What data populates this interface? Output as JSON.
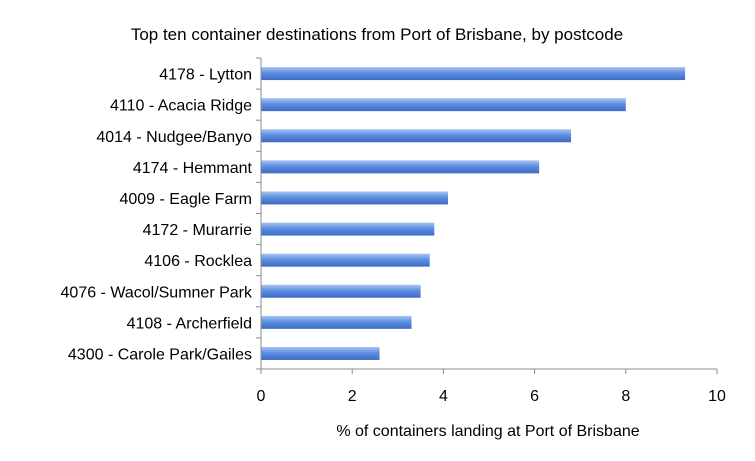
{
  "chart_data": {
    "type": "bar",
    "orientation": "horizontal",
    "title": "Top ten container destinations from Port of Brisbane, by postcode",
    "xlabel": "% of containers landing at Port of Brisbane",
    "ylabel": "",
    "categories": [
      "4178 - Lytton",
      "4110 - Acacia Ridge",
      "4014 - Nudgee/Banyo",
      "4174 - Hemmant",
      "4009 - Eagle Farm",
      "4172 - Murarrie",
      "4106 - Rocklea",
      "4076 - Wacol/Sumner Park",
      "4108 - Archerfield",
      "4300 - Carole Park/Gailes"
    ],
    "values": [
      9.3,
      8.0,
      6.8,
      6.1,
      4.1,
      3.8,
      3.7,
      3.5,
      3.3,
      2.6
    ],
    "xlim": [
      0,
      10
    ],
    "xticks": [
      0,
      2,
      4,
      6,
      8,
      10
    ],
    "grid": false,
    "legend": "none",
    "bar_color": "#4f81d6"
  }
}
